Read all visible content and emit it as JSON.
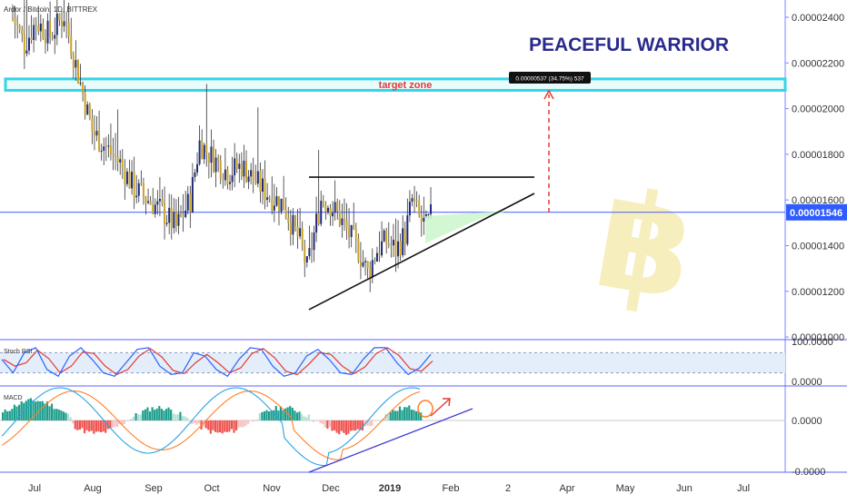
{
  "symbol_header": "Ardor / Bitcoin, 1D, BITTREX",
  "watermark_title": "PEACEFUL WARRIOR",
  "colors": {
    "up": "#2b2b2b",
    "down": "#2b2b2b",
    "up_body": "#1e2a78",
    "down_body": "#c9a227",
    "price_line": "#3d5afe",
    "zone": "#33d6e6",
    "zone_text": "#e53935",
    "rsi_k": "#2962ff",
    "rsi_d": "#e53935",
    "macd": "#29a3e0",
    "signal": "#ff7f27",
    "hist_pos_strong": "#1b9e8c",
    "hist_pos_weak": "#b2e0d6",
    "hist_neg_strong": "#ef5350",
    "hist_neg_weak": "#f7c0bd",
    "btc_logo": "#f5e9a8"
  },
  "price_axis": {
    "ticks": [
      "0.00002400",
      "0.00002200",
      "0.00002000",
      "0.00001800",
      "0.00001600",
      "0.00001400",
      "0.00001200",
      "0.00001000"
    ],
    "tick_values": [
      2.4e-05,
      2.2e-05,
      2e-05,
      1.8e-05,
      1.6e-05,
      1.4e-05,
      1.2e-05,
      1e-05
    ],
    "current_price": "0.00001546",
    "current_value": 1.546e-05
  },
  "target_zone": {
    "label": "target zone",
    "low": 2.08e-05,
    "high": 2.13e-05
  },
  "measure_label": "0.00000537 (34.75%) 537",
  "measure_target": 2.12e-05,
  "time_axis": {
    "labels": [
      "Jul",
      "Aug",
      "Sep",
      "Oct",
      "Nov",
      "Dec",
      "2019",
      "Feb",
      "2",
      "Apr",
      "May",
      "Jun",
      "Jul"
    ]
  },
  "stoch_rsi": {
    "label": "Stoch RSI",
    "ticks": [
      "100.0000",
      "0.0000"
    ],
    "upper": 80,
    "lower": 20
  },
  "macd": {
    "label": "MACD",
    "ticks": [
      "0.0000",
      "-0.0000"
    ]
  },
  "chart_data": {
    "type": "candlestick",
    "title": "Ardor / Bitcoin, 1D, BITTREX",
    "y_scale": "linear",
    "ylim": [
      1e-05,
      2.45e-05
    ],
    "price_path": [
      [
        0,
        2.4e-05
      ],
      [
        5,
        2.28e-05
      ],
      [
        10,
        2.38e-05
      ],
      [
        16,
        2.32e-05
      ],
      [
        22,
        2.41e-05
      ],
      [
        28,
        2.15e-05
      ],
      [
        34,
        1.9e-05
      ],
      [
        40,
        1.83e-05
      ],
      [
        46,
        1.76e-05
      ],
      [
        52,
        1.65e-05
      ],
      [
        58,
        1.6e-05
      ],
      [
        64,
        1.55e-05
      ],
      [
        70,
        1.48e-05
      ],
      [
        76,
        1.6e-05
      ],
      [
        80,
        1.85e-05
      ],
      [
        86,
        1.78e-05
      ],
      [
        92,
        1.72e-05
      ],
      [
        98,
        1.75e-05
      ],
      [
        104,
        1.68e-05
      ],
      [
        110,
        1.62e-05
      ],
      [
        116,
        1.58e-05
      ],
      [
        120,
        1.48e-05
      ],
      [
        123,
        1.42e-05
      ],
      [
        126,
        1.3e-05
      ],
      [
        128,
        1.4e-05
      ],
      [
        132,
        1.6e-05
      ],
      [
        136,
        1.58e-05
      ],
      [
        140,
        1.52e-05
      ],
      [
        144,
        1.45e-05
      ],
      [
        148,
        1.38e-05
      ],
      [
        152,
        1.28e-05
      ],
      [
        156,
        1.38e-05
      ],
      [
        160,
        1.42e-05
      ],
      [
        164,
        1.38e-05
      ],
      [
        168,
        1.45e-05
      ],
      [
        171,
        1.6e-05
      ],
      [
        174,
        1.52e-05
      ],
      [
        177,
        1.48e-05
      ],
      [
        180,
        1.55e-05
      ]
    ],
    "triangle_resistance": 1.7e-05,
    "triangle_support_start": 1.12e-05,
    "series": [
      {
        "name": "Stoch RSI",
        "k": [
          60,
          20,
          80,
          95,
          30,
          10,
          70,
          95,
          60,
          20,
          10,
          50,
          90,
          95,
          40,
          15,
          20,
          80,
          70,
          30,
          10,
          60,
          95,
          90,
          40,
          10,
          20,
          70,
          90,
          60,
          20,
          15,
          60,
          95,
          95,
          50,
          15,
          35,
          75
        ]
      },
      {
        "name": "MACD"
      }
    ]
  }
}
